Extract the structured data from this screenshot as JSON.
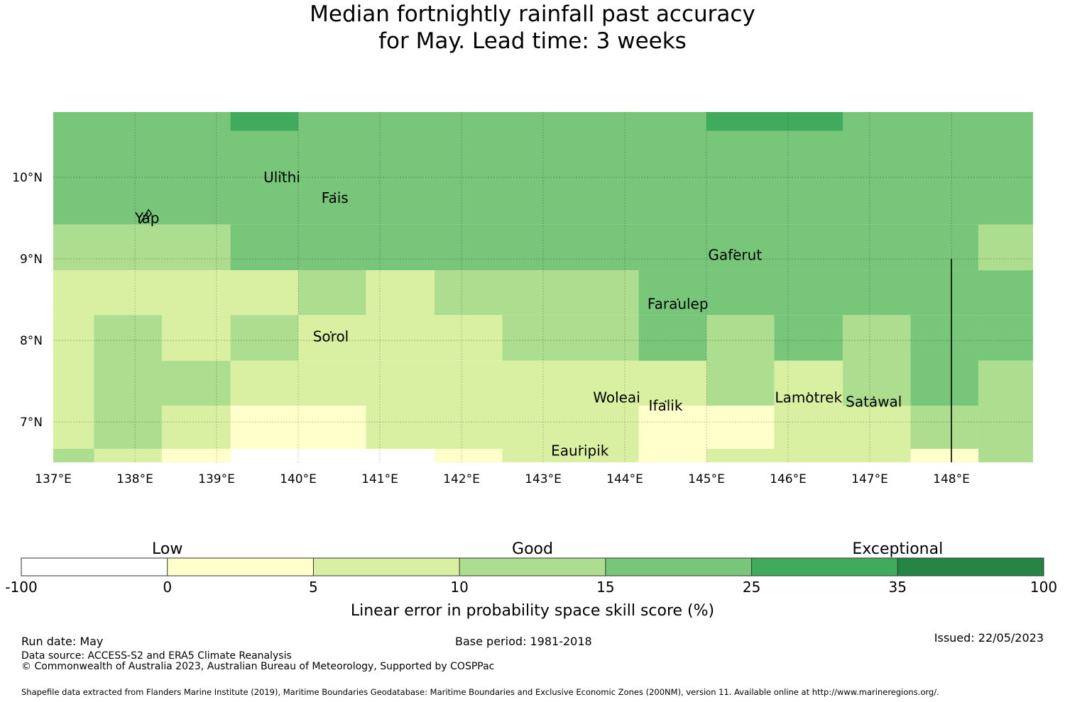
{
  "title": {
    "line1": "Median fortnightly rainfall past accuracy",
    "line2": "for May. Lead time: 3 weeks"
  },
  "map": {
    "lon_range": [
      137,
      149
    ],
    "lat_range": [
      6.5,
      10.8
    ],
    "x_ticks": [
      "137°E",
      "138°E",
      "139°E",
      "140°E",
      "141°E",
      "142°E",
      "143°E",
      "144°E",
      "145°E",
      "146°E",
      "147°E",
      "148°E"
    ],
    "y_ticks": [
      "10°N",
      "9°N",
      "8°N",
      "7°N"
    ],
    "grid_lon_step": 1,
    "grid_lat_step": 1,
    "places": [
      {
        "name": "Ulithi",
        "lon": 139.8,
        "lat": 10.0
      },
      {
        "name": "Fais",
        "lon": 140.45,
        "lat": 9.75
      },
      {
        "name": "Yap",
        "lon": 138.15,
        "lat": 9.5
      },
      {
        "name": "Gaferut",
        "lon": 145.35,
        "lat": 9.05
      },
      {
        "name": "Faraulep",
        "lon": 144.65,
        "lat": 8.45
      },
      {
        "name": "Sorol",
        "lon": 140.4,
        "lat": 8.05
      },
      {
        "name": "Woleai",
        "lon": 143.9,
        "lat": 7.3
      },
      {
        "name": "Ifalik",
        "lon": 144.5,
        "lat": 7.2
      },
      {
        "name": "Lamotrek",
        "lon": 146.25,
        "lat": 7.3
      },
      {
        "name": "Satawal",
        "lon": 147.05,
        "lat": 7.25
      },
      {
        "name": "Eauripik",
        "lon": 143.45,
        "lat": 6.65
      }
    ],
    "boundary_line": {
      "lon": 148.0,
      "lat_from": 9.0,
      "lat_to": 6.5
    },
    "class_colors": [
      "#ffffff",
      "#ffffcc",
      "#d9f0a3",
      "#addd8e",
      "#78c679",
      "#41ab5d",
      "#238443"
    ],
    "grid_cells": [
      [
        4,
        4,
        4,
        4,
        4,
        4,
        4,
        4,
        4,
        4,
        4,
        4,
        4,
        4,
        4,
        4,
        4,
        4,
        4,
        4,
        4,
        4,
        4,
        4,
        4,
        4,
        4,
        4,
        4,
        4,
        4,
        4,
        4,
        4,
        4,
        4,
        4,
        4,
        4,
        4,
        4,
        4,
        4,
        4,
        4,
        4,
        4,
        4,
        4,
        4,
        4,
        4,
        4,
        4,
        4,
        4,
        4,
        4,
        4,
        4,
        4,
        4,
        4,
        4,
        4,
        4,
        4,
        4,
        4,
        4,
        4,
        4
      ],
      [
        4,
        4,
        4,
        4,
        4,
        4,
        4,
        4,
        4,
        4,
        4,
        4,
        4,
        4,
        4,
        4,
        4,
        4,
        4,
        4,
        4,
        4,
        4,
        4,
        4,
        4,
        4,
        4,
        4,
        4,
        4,
        4,
        4,
        4,
        4,
        4,
        4,
        4,
        4,
        4,
        4,
        4,
        4,
        4,
        4,
        4,
        4,
        4,
        4,
        4,
        4,
        4,
        4,
        4,
        4,
        4,
        4,
        4,
        4,
        4,
        4,
        4,
        4,
        4,
        4,
        4,
        4,
        4,
        4,
        4,
        4,
        4
      ],
      [
        4,
        4,
        4,
        4,
        4,
        4,
        4,
        4,
        4,
        4,
        4,
        4,
        4,
        4,
        4,
        4,
        4,
        4,
        4,
        4,
        4,
        4,
        4,
        4,
        4,
        4,
        4,
        4,
        4,
        4,
        4,
        4,
        4,
        4,
        4,
        4,
        4,
        4,
        4,
        4,
        4,
        4,
        4,
        4,
        4,
        4,
        4,
        4,
        4,
        4,
        4,
        4,
        4,
        4,
        4,
        4,
        4,
        4,
        4,
        4,
        4,
        4,
        4,
        4,
        4,
        4,
        4,
        4,
        4,
        4,
        4,
        4
      ]
    ],
    "cells": [
      {
        "lon1": 137.0,
        "lon2": 149.0,
        "lat1": 9.42,
        "lat2": 10.8,
        "c": 4
      },
      {
        "lon1": 139.17,
        "lon2": 140.0,
        "lat1": 10.57,
        "lat2": 10.8,
        "c": 5
      },
      {
        "lon1": 145.0,
        "lon2": 146.67,
        "lat1": 10.57,
        "lat2": 10.8,
        "c": 5
      },
      {
        "lon1": 148.33,
        "lon2": 149.0,
        "lat1": 9.42,
        "lat2": 10.8,
        "c": 4
      },
      {
        "lon1": 137.0,
        "lon2": 139.17,
        "lat1": 8.86,
        "lat2": 9.42,
        "c": 3
      },
      {
        "lon1": 139.17,
        "lon2": 148.33,
        "lat1": 8.86,
        "lat2": 9.42,
        "c": 4
      },
      {
        "lon1": 148.33,
        "lon2": 149.0,
        "lat1": 8.86,
        "lat2": 9.42,
        "c": 3
      },
      {
        "lon1": 137.0,
        "lon2": 140.0,
        "lat1": 8.31,
        "lat2": 8.86,
        "c": 2
      },
      {
        "lon1": 140.0,
        "lon2": 140.83,
        "lat1": 8.31,
        "lat2": 8.86,
        "c": 3
      },
      {
        "lon1": 140.83,
        "lon2": 141.67,
        "lat1": 8.31,
        "lat2": 8.86,
        "c": 2
      },
      {
        "lon1": 141.67,
        "lon2": 144.17,
        "lat1": 8.31,
        "lat2": 8.86,
        "c": 3
      },
      {
        "lon1": 144.17,
        "lon2": 149.0,
        "lat1": 8.31,
        "lat2": 8.86,
        "c": 4
      },
      {
        "lon1": 137.0,
        "lon2": 137.5,
        "lat1": 6.67,
        "lat2": 8.31,
        "c": 2
      },
      {
        "lon1": 137.5,
        "lon2": 138.33,
        "lat1": 6.67,
        "lat2": 8.31,
        "c": 3
      },
      {
        "lon1": 138.33,
        "lon2": 139.17,
        "lat1": 7.75,
        "lat2": 8.31,
        "c": 2
      },
      {
        "lon1": 138.33,
        "lon2": 139.17,
        "lat1": 7.2,
        "lat2": 7.75,
        "c": 3
      },
      {
        "lon1": 138.33,
        "lon2": 139.17,
        "lat1": 6.67,
        "lat2": 7.2,
        "c": 2
      },
      {
        "lon1": 139.17,
        "lon2": 140.0,
        "lat1": 7.75,
        "lat2": 8.31,
        "c": 3
      },
      {
        "lon1": 139.17,
        "lon2": 140.83,
        "lat1": 7.2,
        "lat2": 7.75,
        "c": 2
      },
      {
        "lon1": 139.17,
        "lon2": 140.83,
        "lat1": 6.67,
        "lat2": 7.2,
        "c": 1
      },
      {
        "lon1": 140.0,
        "lon2": 142.5,
        "lat1": 7.75,
        "lat2": 8.31,
        "c": 2
      },
      {
        "lon1": 140.83,
        "lon2": 142.5,
        "lat1": 6.67,
        "lat2": 7.75,
        "c": 2
      },
      {
        "lon1": 142.5,
        "lon2": 144.17,
        "lat1": 7.75,
        "lat2": 8.31,
        "c": 3
      },
      {
        "lon1": 142.5,
        "lon2": 145.0,
        "lat1": 6.67,
        "lat2": 7.75,
        "c": 2
      },
      {
        "lon1": 144.17,
        "lon2": 145.0,
        "lat1": 7.75,
        "lat2": 8.31,
        "c": 4
      },
      {
        "lon1": 144.17,
        "lon2": 145.0,
        "lat1": 6.5,
        "lat2": 7.2,
        "c": 1
      },
      {
        "lon1": 145.0,
        "lon2": 145.83,
        "lat1": 7.2,
        "lat2": 8.31,
        "c": 3
      },
      {
        "lon1": 145.0,
        "lon2": 145.83,
        "lat1": 6.67,
        "lat2": 7.2,
        "c": 1
      },
      {
        "lon1": 145.83,
        "lon2": 146.67,
        "lat1": 7.75,
        "lat2": 8.31,
        "c": 4
      },
      {
        "lon1": 145.83,
        "lon2": 146.67,
        "lat1": 6.67,
        "lat2": 7.75,
        "c": 2
      },
      {
        "lon1": 146.67,
        "lon2": 147.5,
        "lat1": 6.67,
        "lat2": 8.31,
        "c": 3
      },
      {
        "lon1": 146.67,
        "lon2": 147.5,
        "lat1": 6.67,
        "lat2": 7.2,
        "c": 2
      },
      {
        "lon1": 147.5,
        "lon2": 148.33,
        "lat1": 7.2,
        "lat2": 8.31,
        "c": 4
      },
      {
        "lon1": 147.5,
        "lon2": 148.33,
        "lat1": 6.67,
        "lat2": 7.2,
        "c": 3
      },
      {
        "lon1": 148.33,
        "lon2": 149.0,
        "lat1": 7.75,
        "lat2": 8.31,
        "c": 4
      },
      {
        "lon1": 148.33,
        "lon2": 149.0,
        "lat1": 6.5,
        "lat2": 7.75,
        "c": 3
      },
      {
        "lon1": 137.0,
        "lon2": 137.5,
        "lat1": 6.5,
        "lat2": 6.67,
        "c": 3
      },
      {
        "lon1": 137.5,
        "lon2": 138.33,
        "lat1": 6.5,
        "lat2": 6.67,
        "c": 2
      },
      {
        "lon1": 138.33,
        "lon2": 139.17,
        "lat1": 6.5,
        "lat2": 6.67,
        "c": 1
      },
      {
        "lon1": 139.17,
        "lon2": 141.67,
        "lat1": 6.5,
        "lat2": 6.67,
        "c": 0
      },
      {
        "lon1": 141.67,
        "lon2": 142.5,
        "lat1": 6.5,
        "lat2": 6.67,
        "c": 1
      },
      {
        "lon1": 142.5,
        "lon2": 144.17,
        "lat1": 6.5,
        "lat2": 6.67,
        "c": 2
      },
      {
        "lon1": 145.0,
        "lon2": 147.5,
        "lat1": 6.5,
        "lat2": 6.67,
        "c": 2
      },
      {
        "lon1": 147.5,
        "lon2": 148.33,
        "lat1": 6.5,
        "lat2": 6.67,
        "c": 1
      }
    ]
  },
  "colorbar": {
    "categories": [
      {
        "label": "Low",
        "from": 0,
        "to": 2
      },
      {
        "label": "Good",
        "from": 2,
        "to": 5
      },
      {
        "label": "Exceptional",
        "from": 5,
        "to": 7
      }
    ],
    "ticks": [
      "-100",
      "0",
      "5",
      "10",
      "15",
      "25",
      "35",
      "100"
    ],
    "colors": [
      "#ffffff",
      "#ffffcc",
      "#d9f0a3",
      "#addd8e",
      "#78c679",
      "#41ab5d",
      "#238443"
    ],
    "label": "Linear error in probability space skill score (%)"
  },
  "footer": {
    "run_date": "Run date: May",
    "base_period": "Base period: 1981-2018",
    "issued": "Issued: 22/05/2023",
    "data_source": "Data source: ACCESS-S2 and ERA5 Climate Reanalysis",
    "copyright": "© Commonwealth of Australia 2023, Australian Bureau of Meteorology, Supported by COSPPac",
    "shapefile": "Shapefile data extracted from Flanders Marine Institute (2019), Maritime Boundaries Geodatabase: Maritime Boundaries and Exclusive Economic Zones (200NM), version 11. Available online at http://www.marineregions.org/."
  }
}
